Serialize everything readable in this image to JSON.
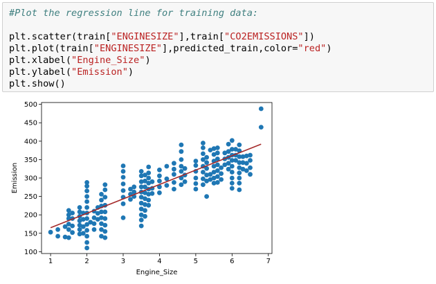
{
  "code_cell": {
    "comment": "#Plot the regression line for training data:",
    "line_scatter": {
      "p1": "plt.scatter(train[",
      "s1": "\"ENGINESIZE\"",
      "p2": "],train[",
      "s2": "\"CO2EMISSIONS\"",
      "p3": "])"
    },
    "line_plot": {
      "p1": "plt.plot(train[",
      "s1": "\"ENGINESIZE\"",
      "p2": "],predicted_train,color=",
      "s2": "\"red\"",
      "p3": ")"
    },
    "line_xlabel": {
      "p1": "plt.xlabel(",
      "s1": "\"Engine_Size\"",
      "p2": ")"
    },
    "line_ylabel": {
      "p1": "plt.ylabel(",
      "s1": "\"Emission\"",
      "p2": ")"
    },
    "line_show": "plt.show()"
  },
  "colors": {
    "comment": "#408080",
    "string": "#ba2121",
    "points": "#1f77b4",
    "line": "#a52a2a"
  },
  "chart_data": {
    "type": "scatter",
    "xlabel": "Engine_Size",
    "ylabel": "Emission",
    "xlim": [
      0.75,
      7.1
    ],
    "ylim": [
      95,
      505
    ],
    "x_ticks": [
      1,
      2,
      3,
      4,
      5,
      6,
      7
    ],
    "y_ticks": [
      100,
      150,
      200,
      250,
      300,
      350,
      400,
      450,
      500
    ],
    "grid": false,
    "regression_line": {
      "x": [
        1.0,
        6.8
      ],
      "y": [
        165,
        392
      ],
      "color": "red"
    },
    "points": [
      [
        1.0,
        153
      ],
      [
        1.2,
        142
      ],
      [
        1.2,
        160
      ],
      [
        1.4,
        168
      ],
      [
        1.4,
        140
      ],
      [
        1.5,
        138
      ],
      [
        1.5,
        160
      ],
      [
        1.5,
        175
      ],
      [
        1.5,
        190
      ],
      [
        1.5,
        200
      ],
      [
        1.5,
        212
      ],
      [
        1.6,
        152
      ],
      [
        1.6,
        170
      ],
      [
        1.6,
        190
      ],
      [
        1.6,
        205
      ],
      [
        1.8,
        148
      ],
      [
        1.8,
        160
      ],
      [
        1.8,
        172
      ],
      [
        1.8,
        184
      ],
      [
        1.8,
        196
      ],
      [
        1.8,
        208
      ],
      [
        1.8,
        220
      ],
      [
        1.9,
        150
      ],
      [
        1.9,
        168
      ],
      [
        1.9,
        188
      ],
      [
        1.9,
        205
      ],
      [
        2.0,
        110
      ],
      [
        2.0,
        125
      ],
      [
        2.0,
        142
      ],
      [
        2.0,
        158
      ],
      [
        2.0,
        174
      ],
      [
        2.0,
        190
      ],
      [
        2.0,
        205
      ],
      [
        2.0,
        220
      ],
      [
        2.0,
        236
      ],
      [
        2.0,
        250
      ],
      [
        2.0,
        265
      ],
      [
        2.0,
        278
      ],
      [
        2.0,
        288
      ],
      [
        2.1,
        180
      ],
      [
        2.2,
        160
      ],
      [
        2.2,
        176
      ],
      [
        2.2,
        192
      ],
      [
        2.2,
        210
      ],
      [
        2.3,
        188
      ],
      [
        2.3,
        204
      ],
      [
        2.3,
        220
      ],
      [
        2.4,
        142
      ],
      [
        2.4,
        160
      ],
      [
        2.4,
        176
      ],
      [
        2.4,
        192
      ],
      [
        2.4,
        208
      ],
      [
        2.4,
        224
      ],
      [
        2.4,
        240
      ],
      [
        2.4,
        256
      ],
      [
        2.5,
        138
      ],
      [
        2.5,
        155
      ],
      [
        2.5,
        172
      ],
      [
        2.5,
        190
      ],
      [
        2.5,
        208
      ],
      [
        2.5,
        226
      ],
      [
        2.5,
        248
      ],
      [
        2.5,
        268
      ],
      [
        2.5,
        282
      ],
      [
        3.0,
        192
      ],
      [
        3.0,
        230
      ],
      [
        3.0,
        248
      ],
      [
        3.0,
        266
      ],
      [
        3.0,
        284
      ],
      [
        3.0,
        302
      ],
      [
        3.0,
        318
      ],
      [
        3.0,
        333
      ],
      [
        3.2,
        242
      ],
      [
        3.2,
        256
      ],
      [
        3.2,
        270
      ],
      [
        3.3,
        250
      ],
      [
        3.3,
        262
      ],
      [
        3.3,
        276
      ],
      [
        3.5,
        170
      ],
      [
        3.5,
        186
      ],
      [
        3.5,
        200
      ],
      [
        3.5,
        216
      ],
      [
        3.5,
        232
      ],
      [
        3.5,
        248
      ],
      [
        3.5,
        262
      ],
      [
        3.5,
        276
      ],
      [
        3.5,
        290
      ],
      [
        3.5,
        306
      ],
      [
        3.5,
        318
      ],
      [
        3.6,
        196
      ],
      [
        3.6,
        212
      ],
      [
        3.6,
        228
      ],
      [
        3.6,
        244
      ],
      [
        3.6,
        260
      ],
      [
        3.6,
        276
      ],
      [
        3.6,
        292
      ],
      [
        3.6,
        308
      ],
      [
        3.7,
        226
      ],
      [
        3.7,
        240
      ],
      [
        3.7,
        256
      ],
      [
        3.7,
        270
      ],
      [
        3.7,
        286
      ],
      [
        3.7,
        300
      ],
      [
        3.7,
        314
      ],
      [
        3.7,
        330
      ],
      [
        3.8,
        258
      ],
      [
        3.8,
        272
      ],
      [
        3.8,
        290
      ],
      [
        4.0,
        260
      ],
      [
        4.0,
        276
      ],
      [
        4.0,
        292
      ],
      [
        4.0,
        306
      ],
      [
        4.0,
        322
      ],
      [
        4.2,
        280
      ],
      [
        4.2,
        298
      ],
      [
        4.2,
        332
      ],
      [
        4.4,
        270
      ],
      [
        4.4,
        288
      ],
      [
        4.4,
        310
      ],
      [
        4.4,
        324
      ],
      [
        4.4,
        340
      ],
      [
        4.6,
        282
      ],
      [
        4.6,
        300
      ],
      [
        4.6,
        318
      ],
      [
        4.6,
        332
      ],
      [
        4.6,
        350
      ],
      [
        4.6,
        372
      ],
      [
        4.6,
        390
      ],
      [
        4.7,
        290
      ],
      [
        4.7,
        308
      ],
      [
        4.7,
        326
      ],
      [
        5.0,
        270
      ],
      [
        5.0,
        285
      ],
      [
        5.0,
        300
      ],
      [
        5.0,
        318
      ],
      [
        5.0,
        334
      ],
      [
        5.0,
        346
      ],
      [
        5.2,
        282
      ],
      [
        5.2,
        298
      ],
      [
        5.2,
        316
      ],
      [
        5.2,
        332
      ],
      [
        5.2,
        350
      ],
      [
        5.2,
        366
      ],
      [
        5.2,
        382
      ],
      [
        5.2,
        395
      ],
      [
        5.3,
        250
      ],
      [
        5.3,
        292
      ],
      [
        5.3,
        308
      ],
      [
        5.3,
        326
      ],
      [
        5.3,
        342
      ],
      [
        5.3,
        356
      ],
      [
        5.4,
        296
      ],
      [
        5.4,
        310
      ],
      [
        5.4,
        376
      ],
      [
        5.5,
        286
      ],
      [
        5.5,
        300
      ],
      [
        5.5,
        316
      ],
      [
        5.5,
        332
      ],
      [
        5.5,
        346
      ],
      [
        5.5,
        364
      ],
      [
        5.5,
        380
      ],
      [
        5.6,
        288
      ],
      [
        5.6,
        304
      ],
      [
        5.6,
        320
      ],
      [
        5.6,
        336
      ],
      [
        5.6,
        352
      ],
      [
        5.6,
        368
      ],
      [
        5.6,
        382
      ],
      [
        5.7,
        296
      ],
      [
        5.7,
        312
      ],
      [
        5.7,
        328
      ],
      [
        5.8,
        336
      ],
      [
        5.8,
        352
      ],
      [
        5.8,
        368
      ],
      [
        5.9,
        324
      ],
      [
        5.9,
        340
      ],
      [
        5.9,
        356
      ],
      [
        5.9,
        372
      ],
      [
        5.9,
        392
      ],
      [
        6.0,
        272
      ],
      [
        6.0,
        286
      ],
      [
        6.0,
        300
      ],
      [
        6.0,
        316
      ],
      [
        6.0,
        332
      ],
      [
        6.0,
        348
      ],
      [
        6.0,
        362
      ],
      [
        6.0,
        378
      ],
      [
        6.0,
        402
      ],
      [
        6.1,
        348
      ],
      [
        6.1,
        362
      ],
      [
        6.1,
        378
      ],
      [
        6.2,
        268
      ],
      [
        6.2,
        286
      ],
      [
        6.2,
        300
      ],
      [
        6.2,
        314
      ],
      [
        6.2,
        328
      ],
      [
        6.2,
        342
      ],
      [
        6.2,
        358
      ],
      [
        6.2,
        374
      ],
      [
        6.2,
        390
      ],
      [
        6.3,
        324
      ],
      [
        6.3,
        342
      ],
      [
        6.3,
        358
      ],
      [
        6.4,
        320
      ],
      [
        6.4,
        340
      ],
      [
        6.4,
        360
      ],
      [
        6.5,
        310
      ],
      [
        6.5,
        328
      ],
      [
        6.5,
        348
      ],
      [
        6.5,
        362
      ],
      [
        6.8,
        438
      ],
      [
        6.8,
        488
      ]
    ]
  }
}
